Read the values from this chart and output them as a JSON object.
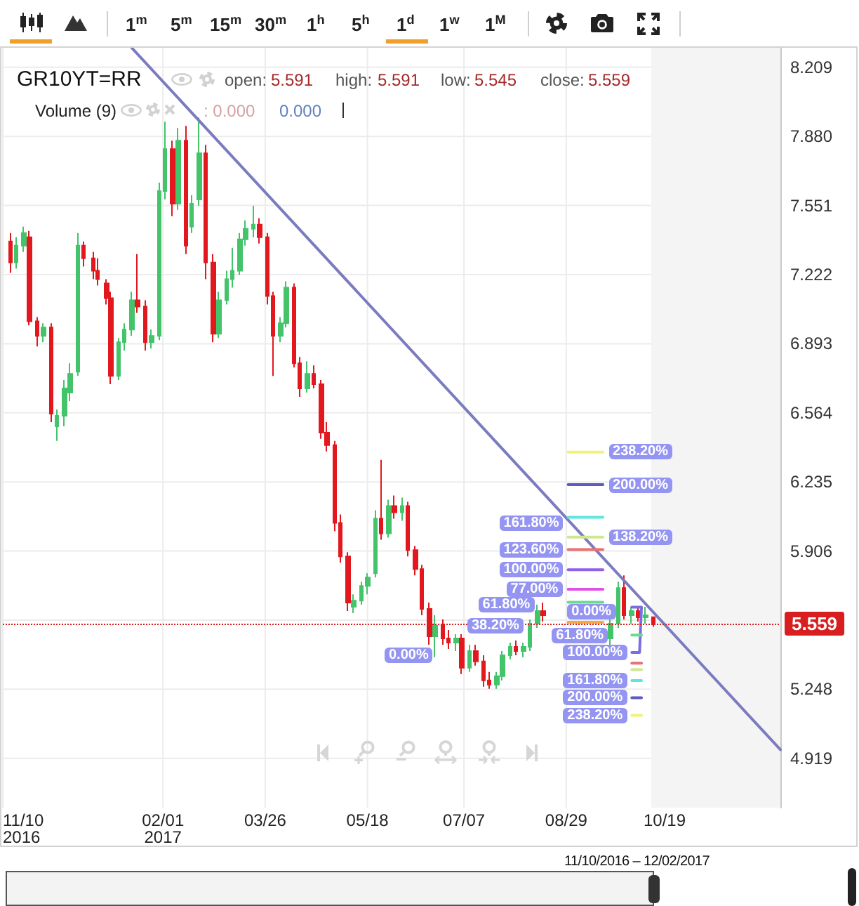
{
  "chart_data": {
    "type": "candlestick",
    "title": "GR10YT=RR",
    "x": [
      "2016-11-14",
      "2016-11-17",
      "2016-11-21",
      "2016-11-24",
      "2016-11-28",
      "2016-12-01",
      "2016-12-05",
      "2016-12-08",
      "2016-12-12",
      "2016-12-15",
      "2016-12-19",
      "2016-12-22",
      "2016-12-27",
      "2016-12-29",
      "2017-01-03",
      "2017-01-05",
      "2017-01-09",
      "2017-01-12",
      "2017-01-16",
      "2017-01-19",
      "2017-01-23",
      "2017-01-26",
      "2017-01-30",
      "2017-02-02",
      "2017-02-06",
      "2017-02-09",
      "2017-02-13",
      "2017-02-16",
      "2017-02-20",
      "2017-02-23",
      "2017-02-27",
      "2017-03-02",
      "2017-03-06",
      "2017-03-09",
      "2017-03-13",
      "2017-03-16",
      "2017-03-20",
      "2017-03-23",
      "2017-03-27",
      "2017-03-30",
      "2017-04-03",
      "2017-04-06",
      "2017-04-10",
      "2017-04-13",
      "2017-04-17",
      "2017-04-20",
      "2017-04-24",
      "2017-04-27",
      "2017-05-01",
      "2017-05-04",
      "2017-05-08",
      "2017-05-11",
      "2017-05-15",
      "2017-05-18",
      "2017-05-22",
      "2017-05-25",
      "2017-05-29",
      "2017-06-01",
      "2017-06-05",
      "2017-06-08",
      "2017-06-12",
      "2017-06-15",
      "2017-06-19",
      "2017-06-22",
      "2017-06-26",
      "2017-06-29",
      "2017-07-03",
      "2017-07-06",
      "2017-07-10",
      "2017-07-13",
      "2017-07-17",
      "2017-07-20",
      "2017-07-24",
      "2017-07-27",
      "2017-07-31",
      "2017-08-03",
      "2017-08-07",
      "2017-08-10",
      "2017-08-14",
      "2017-08-17",
      "2017-09-21",
      "2017-09-25",
      "2017-09-28",
      "2017-10-02",
      "2017-10-05",
      "2017-10-09",
      "2017-10-13"
    ],
    "ohlc": [
      [
        7.38,
        7.42,
        7.23,
        7.28
      ],
      [
        7.28,
        7.4,
        7.25,
        7.36
      ],
      [
        7.36,
        7.45,
        7.33,
        7.42
      ],
      [
        7.4,
        7.43,
        6.98,
        7.0
      ],
      [
        7.0,
        7.02,
        6.88,
        6.93
      ],
      [
        6.93,
        6.99,
        6.9,
        6.97
      ],
      [
        6.97,
        6.99,
        6.52,
        6.56
      ],
      [
        6.5,
        6.58,
        6.43,
        6.55
      ],
      [
        6.55,
        6.72,
        6.5,
        6.68
      ],
      [
        6.66,
        6.8,
        6.62,
        6.75
      ],
      [
        6.76,
        7.42,
        6.74,
        7.36
      ],
      [
        7.36,
        7.38,
        7.26,
        7.3
      ],
      [
        7.3,
        7.33,
        7.2,
        7.24
      ],
      [
        7.24,
        7.3,
        7.17,
        7.2
      ],
      [
        7.18,
        7.2,
        7.08,
        7.11
      ],
      [
        7.11,
        7.14,
        6.7,
        6.74
      ],
      [
        6.74,
        6.92,
        6.72,
        6.9
      ],
      [
        6.9,
        6.99,
        6.86,
        6.96
      ],
      [
        6.96,
        7.14,
        6.93,
        7.1
      ],
      [
        7.1,
        7.32,
        7.04,
        7.07
      ],
      [
        7.07,
        7.1,
        6.86,
        6.9
      ],
      [
        6.9,
        6.96,
        6.87,
        6.93
      ],
      [
        6.93,
        7.66,
        6.91,
        7.62
      ],
      [
        7.62,
        7.95,
        7.58,
        7.82
      ],
      [
        7.82,
        7.86,
        7.5,
        7.56
      ],
      [
        7.56,
        7.92,
        7.53,
        7.86
      ],
      [
        7.86,
        7.93,
        7.32,
        7.36
      ],
      [
        7.45,
        7.6,
        7.42,
        7.56
      ],
      [
        7.58,
        7.97,
        7.55,
        7.8
      ],
      [
        7.8,
        7.84,
        7.2,
        7.28
      ],
      [
        7.28,
        7.32,
        6.9,
        6.94
      ],
      [
        6.94,
        7.14,
        6.92,
        7.1
      ],
      [
        7.1,
        7.24,
        7.08,
        7.2
      ],
      [
        7.2,
        7.35,
        7.16,
        7.24
      ],
      [
        7.24,
        7.42,
        7.22,
        7.39
      ],
      [
        7.39,
        7.48,
        7.36,
        7.44
      ],
      [
        7.44,
        7.55,
        7.4,
        7.46
      ],
      [
        7.46,
        7.49,
        7.37,
        7.4
      ],
      [
        7.4,
        7.42,
        7.08,
        7.12
      ],
      [
        7.12,
        7.14,
        6.74,
        6.93
      ],
      [
        6.93,
        7.02,
        6.9,
        6.99
      ],
      [
        6.99,
        7.19,
        6.97,
        7.16
      ],
      [
        7.16,
        7.18,
        6.78,
        6.8
      ],
      [
        6.8,
        6.83,
        6.64,
        6.68
      ],
      [
        6.68,
        6.81,
        6.66,
        6.75
      ],
      [
        6.75,
        6.79,
        6.68,
        6.7
      ],
      [
        6.7,
        6.72,
        6.44,
        6.47
      ],
      [
        6.47,
        6.52,
        6.38,
        6.41
      ],
      [
        6.41,
        6.43,
        6.0,
        6.04
      ],
      [
        6.04,
        6.08,
        5.85,
        5.88
      ],
      [
        5.88,
        5.9,
        5.62,
        5.66
      ],
      [
        5.64,
        5.7,
        5.61,
        5.67
      ],
      [
        5.67,
        5.76,
        5.65,
        5.74
      ],
      [
        5.74,
        5.8,
        5.7,
        5.78
      ],
      [
        5.8,
        6.1,
        5.78,
        6.06
      ],
      [
        6.06,
        6.34,
        5.96,
        5.99
      ],
      [
        5.99,
        6.15,
        5.97,
        6.12
      ],
      [
        6.12,
        6.17,
        6.06,
        6.09
      ],
      [
        6.09,
        6.16,
        6.05,
        6.12
      ],
      [
        6.12,
        6.14,
        5.88,
        5.91
      ],
      [
        5.91,
        5.93,
        5.79,
        5.82
      ],
      [
        5.82,
        5.84,
        5.6,
        5.63
      ],
      [
        5.63,
        5.66,
        5.46,
        5.5
      ],
      [
        5.5,
        5.6,
        5.4,
        5.55
      ],
      [
        5.55,
        5.58,
        5.46,
        5.49
      ],
      [
        5.49,
        5.53,
        5.44,
        5.47
      ],
      [
        5.47,
        5.51,
        5.43,
        5.49
      ],
      [
        5.49,
        5.51,
        5.32,
        5.35
      ],
      [
        5.35,
        5.46,
        5.33,
        5.43
      ],
      [
        5.43,
        5.46,
        5.36,
        5.38
      ],
      [
        5.38,
        5.41,
        5.26,
        5.29
      ],
      [
        5.29,
        5.33,
        5.25,
        5.27
      ],
      [
        5.27,
        5.33,
        5.25,
        5.31
      ],
      [
        5.31,
        5.43,
        5.29,
        5.41
      ],
      [
        5.41,
        5.47,
        5.39,
        5.45
      ],
      [
        5.45,
        5.48,
        5.41,
        5.43
      ],
      [
        5.43,
        5.47,
        5.4,
        5.45
      ],
      [
        5.45,
        5.58,
        5.43,
        5.56
      ],
      [
        5.56,
        5.65,
        5.54,
        5.62
      ],
      [
        5.62,
        5.66,
        5.57,
        5.6
      ],
      [
        5.49,
        5.58,
        5.46,
        5.56
      ],
      [
        5.56,
        5.76,
        5.54,
        5.73
      ],
      [
        5.73,
        5.79,
        5.58,
        5.6
      ],
      [
        5.6,
        5.64,
        5.56,
        5.62
      ],
      [
        5.62,
        5.64,
        5.57,
        5.59
      ],
      [
        5.59,
        5.64,
        5.56,
        5.6
      ],
      [
        5.591,
        5.591,
        5.545,
        5.559
      ]
    ],
    "colors": [
      "#e3181f",
      "#43c46b",
      "#43c46b",
      "#e3181f",
      "#e3181f",
      "#43c46b",
      "#e3181f",
      "#43c46b",
      "#43c46b",
      "#43c46b",
      "#43c46b",
      "#e3181f",
      "#e3181f",
      "#e3181f",
      "#e3181f",
      "#e3181f",
      "#43c46b",
      "#43c46b",
      "#43c46b",
      "#e3181f",
      "#e3181f",
      "#43c46b",
      "#43c46b",
      "#43c46b",
      "#e3181f",
      "#43c46b",
      "#e3181f",
      "#43c46b",
      "#43c46b",
      "#e3181f",
      "#e3181f",
      "#43c46b",
      "#43c46b",
      "#43c46b",
      "#43c46b",
      "#43c46b",
      "#43c46b",
      "#e3181f",
      "#e3181f",
      "#e3181f",
      "#43c46b",
      "#43c46b",
      "#e3181f",
      "#e3181f",
      "#43c46b",
      "#e3181f",
      "#e3181f",
      "#e3181f",
      "#e3181f",
      "#e3181f",
      "#e3181f",
      "#43c46b",
      "#43c46b",
      "#43c46b",
      "#43c46b",
      "#e3181f",
      "#43c46b",
      "#e3181f",
      "#43c46b",
      "#e3181f",
      "#e3181f",
      "#e3181f",
      "#e3181f",
      "#43c46b",
      "#e3181f",
      "#e3181f",
      "#43c46b",
      "#e3181f",
      "#43c46b",
      "#e3181f",
      "#e3181f",
      "#e3181f",
      "#43c46b",
      "#43c46b",
      "#43c46b",
      "#e3181f",
      "#43c46b",
      "#43c46b",
      "#43c46b",
      "#e3181f",
      "#43c46b",
      "#43c46b",
      "#e3181f",
      "#43c46b",
      "#e3181f",
      "#43c46b",
      "#e3181f"
    ],
    "series": [
      {
        "type": "line",
        "x": [
          "2017-01-16",
          "2017-12-18"
        ],
        "values": [
          8.3,
          4.96
        ],
        "color": "#7b7bc0"
      },
      {
        "type": "line",
        "x": [
          "2017-08-30",
          "2017-09-17"
        ],
        "values": [
          5.567,
          5.567
        ],
        "color": "#f5a742"
      },
      {
        "type": "line",
        "x": [
          "2017-08-30",
          "2017-09-17"
        ],
        "values": [
          5.662,
          5.662
        ],
        "color": "#66dd8d"
      },
      {
        "type": "line",
        "x": [
          "2017-08-30",
          "2017-09-17"
        ],
        "values": [
          5.724,
          5.724
        ],
        "color": "#e150e6"
      },
      {
        "type": "line",
        "x": [
          "2017-08-30",
          "2017-09-17"
        ],
        "values": [
          5.817,
          5.817
        ],
        "color": "#8f5fe8"
      },
      {
        "type": "line",
        "x": [
          "2017-08-30",
          "2017-09-17"
        ],
        "values": [
          5.913,
          5.913
        ],
        "color": "#e87272"
      },
      {
        "type": "line",
        "x": [
          "2017-08-30",
          "2017-09-17"
        ],
        "values": [
          5.972,
          5.972
        ],
        "color": "#cfe88f"
      },
      {
        "type": "line",
        "x": [
          "2017-08-30",
          "2017-09-17"
        ],
        "values": [
          6.067,
          6.067
        ],
        "color": "#5fe6e0"
      },
      {
        "type": "line",
        "x": [
          "2017-08-30",
          "2017-09-17"
        ],
        "values": [
          6.222,
          6.222
        ],
        "color": "#5c5cbd"
      },
      {
        "type": "line",
        "x": [
          "2017-08-30",
          "2017-09-17"
        ],
        "values": [
          6.377,
          6.377
        ],
        "color": "#f2f27a"
      },
      {
        "type": "line",
        "x": [
          "2017-10-02",
          "2017-10-07",
          "2017-10-06",
          "2017-10-02"
        ],
        "values": [
          5.639,
          5.639,
          5.423,
          5.423
        ],
        "color": "#7a6ee0"
      },
      {
        "type": "line",
        "x": [
          "2017-10-02",
          "2017-10-07"
        ],
        "values": [
          5.506,
          5.506
        ],
        "color": "#66dd8d"
      },
      {
        "type": "line",
        "x": [
          "2017-10-02",
          "2017-10-07"
        ],
        "values": [
          5.372,
          5.372
        ],
        "color": "#e87272"
      },
      {
        "type": "line",
        "x": [
          "2017-10-02",
          "2017-10-07"
        ],
        "values": [
          5.341,
          5.341
        ],
        "color": "#cfe88f"
      },
      {
        "type": "line",
        "x": [
          "2017-10-02",
          "2017-10-07"
        ],
        "values": [
          5.289,
          5.289
        ],
        "color": "#5fe6e0"
      },
      {
        "type": "line",
        "x": [
          "2017-10-02",
          "2017-10-07"
        ],
        "values": [
          5.207,
          5.207
        ],
        "color": "#5c5cbd"
      },
      {
        "type": "line",
        "x": [
          "2017-10-02",
          "2017-10-07"
        ],
        "values": [
          5.124,
          5.124
        ],
        "color": "#f2f27a"
      }
    ],
    "xlim": [
      "2016-11-10",
      "2017-12-18"
    ],
    "xticks": [
      {
        "value": "2016-11-10",
        "label": "11/10\n2016"
      },
      {
        "value": "2017-02-01",
        "label": "02/01\n2017"
      },
      {
        "value": "2017-03-26",
        "label": "03/26"
      },
      {
        "value": "2017-05-18",
        "label": "05/18"
      },
      {
        "value": "2017-07-07",
        "label": "07/07"
      },
      {
        "value": "2017-08-29",
        "label": "08/29"
      },
      {
        "value": "2017-10-19",
        "label": "10/19"
      }
    ],
    "ylim": [
      4.684,
      8.302
    ],
    "yticks": [
      4.919,
      5.248,
      {
        "value": 5.577,
        "label": null
      },
      5.906,
      6.235,
      6.564,
      6.893,
      7.222,
      7.551,
      {
        "value": 7.88,
        "label": "7.880"
      },
      8.209
    ],
    "grid": true,
    "marker": "none",
    "ref_lines": [
      {
        "axis": "y",
        "value": 5.559,
        "label": "5.559",
        "color": "#d81e1e",
        "line_style": "dotted"
      }
    ],
    "bands": [
      {
        "axis": "x",
        "from": "2017-10-12",
        "to": "2017-12-18",
        "color": "#f4f4f4"
      }
    ],
    "annotations": [
      "1$^{m}$",
      "5$^{m}$",
      "15$^{m}$",
      "30$^{m}$",
      "1$^{h}$",
      "5$^{h}$",
      "1$^{d}$",
      "1$^{w}$",
      "1$^{M}$",
      "open:",
      "5.591",
      "high:",
      "5.591",
      "low:",
      "5.545",
      "close:",
      "5.559",
      "Volume (9)",
      ": 0.000",
      "0.000",
      "11/10/2016 – 12/02/2017",
      "0.00%",
      "38.20%",
      {
        "text": "61.80%",
        "x": "2017-08-30",
        "y": 5.662
      },
      {
        "text": "77.00%",
        "x": "2017-08-30",
        "y": 5.724
      },
      {
        "text": "100.00%",
        "x": "2017-08-30",
        "y": 5.817
      },
      {
        "text": "123.60%",
        "x": "2017-08-30",
        "y": 5.913
      },
      {
        "text": "138.20%",
        "x": "2017-09-17",
        "y": 5.972
      },
      {
        "text": "161.80%",
        "x": "2017-08-30",
        "y": 6.067
      },
      {
        "text": "200.00%",
        "x": "2017-09-17",
        "y": 6.222
      },
      {
        "text": "238.20%",
        "x": "2017-09-17",
        "y": 6.377
      },
      {
        "text": "0.00%",
        "x": "2017-10-02",
        "y": 5.639
      },
      {
        "text": "61.80%",
        "x": "2017-10-02",
        "y": 5.506
      },
      {
        "text": "100.00%",
        "x": "2017-10-02",
        "y": 5.423
      },
      {
        "text": "161.80%",
        "x": "2017-10-02",
        "y": 5.289
      },
      {
        "text": "200.00%",
        "x": "2017-10-02",
        "y": 5.207
      },
      {
        "text": "238.20%",
        "x": "2017-10-02",
        "y": 5.124
      }
    ]
  }
}
